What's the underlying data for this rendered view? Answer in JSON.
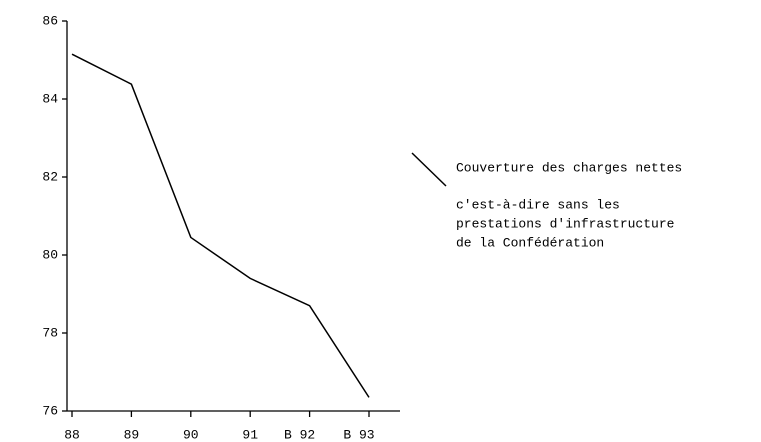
{
  "chart_data": {
    "type": "line",
    "categories": [
      "88",
      "89",
      "90",
      "91",
      "B 92",
      "B 93"
    ],
    "series": [
      {
        "name": "Couverture des charges nettes",
        "color": "#000000",
        "values": [
          85.15,
          84.38,
          80.45,
          79.4,
          78.7,
          76.35
        ]
      }
    ],
    "legend_note": [
      "c'est-à-dire sans les",
      "prestations d'infrastructure",
      "de la Confédération"
    ],
    "ylim": [
      76,
      86
    ],
    "yticks": [
      76,
      78,
      80,
      82,
      84,
      86
    ],
    "grid": false
  }
}
